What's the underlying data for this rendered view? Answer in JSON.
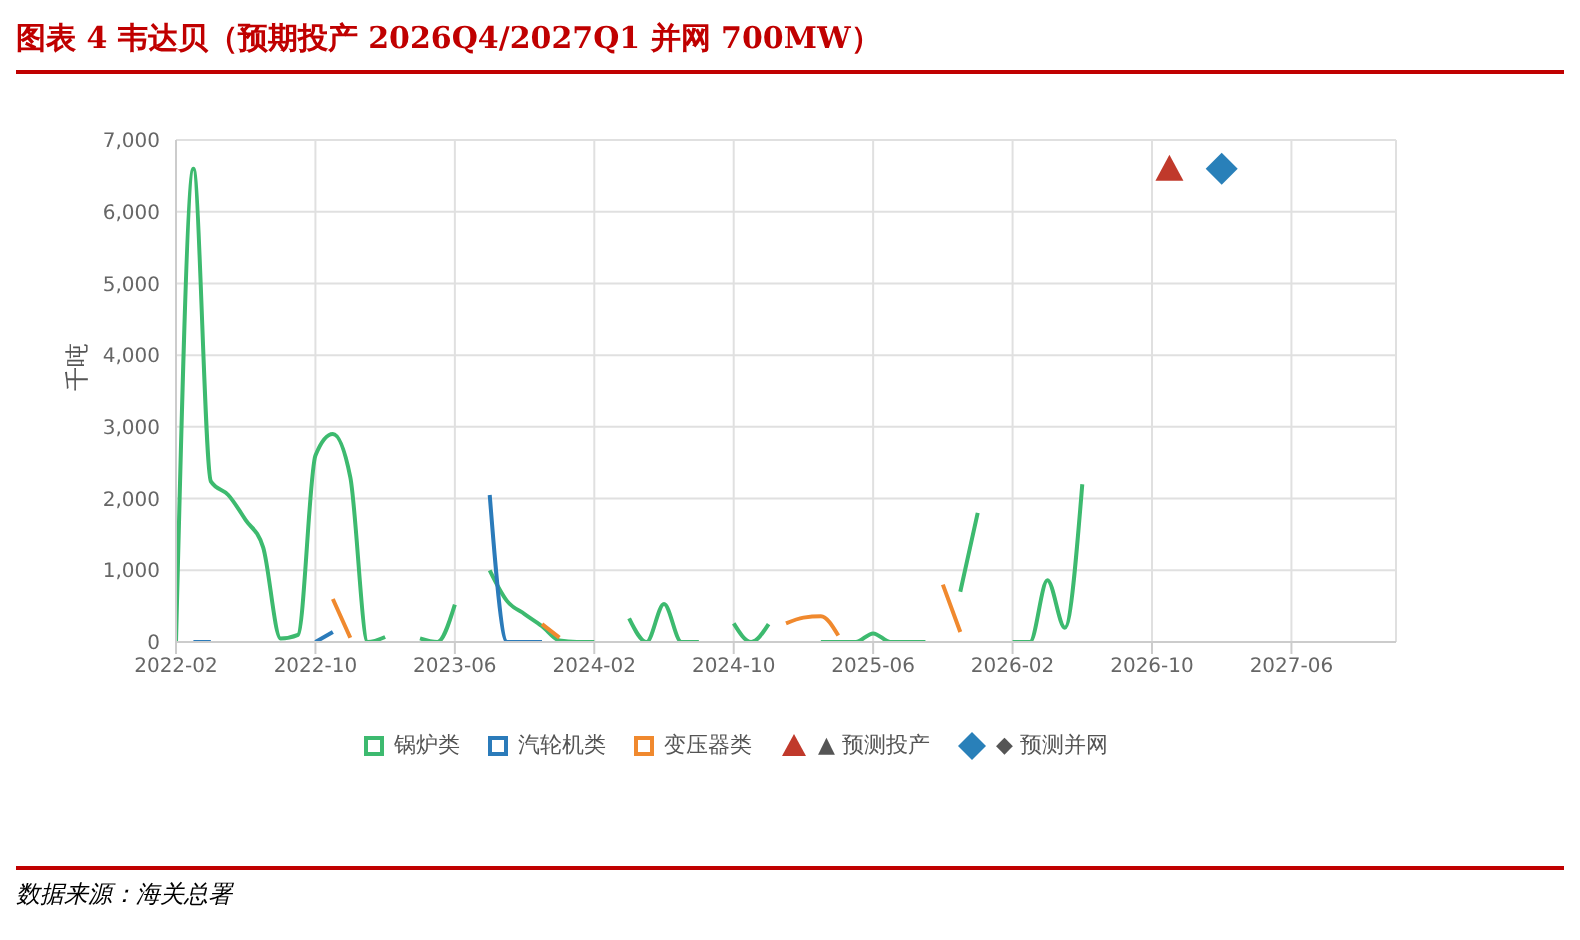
{
  "chart_data": {
    "type": "line",
    "title": "图表 4 韦达贝（预期投产 2026Q4/2027Q1 并网 700MW）",
    "ylabel": "千吨",
    "x": [
      "2022-02",
      "2022-03",
      "2022-04",
      "2022-05",
      "2022-06",
      "2022-07",
      "2022-08",
      "2022-09",
      "2022-10",
      "2022-11",
      "2022-12",
      "2023-01",
      "2023-02",
      "2023-03",
      "2023-04",
      "2023-05",
      "2023-06",
      "2023-07",
      "2023-08",
      "2023-09",
      "2023-10",
      "2023-11",
      "2023-12",
      "2024-01",
      "2024-02",
      "2024-03",
      "2024-04",
      "2024-05",
      "2024-06",
      "2024-07",
      "2024-08",
      "2024-09",
      "2024-10",
      "2024-11",
      "2024-12",
      "2025-01",
      "2025-02",
      "2025-03",
      "2025-04",
      "2025-05",
      "2025-06",
      "2025-07",
      "2025-08",
      "2025-09",
      "2025-10",
      "2025-11",
      "2025-12",
      "2026-01",
      "2026-02",
      "2026-03",
      "2026-04",
      "2026-05",
      "2026-06"
    ],
    "series": [
      {
        "name": "锅炉类",
        "color": "#3dba6f",
        "marker": "none",
        "values": [
          0,
          6600,
          2240,
          2050,
          1700,
          1320,
          50,
          100,
          2600,
          2900,
          2300,
          0,
          70,
          null,
          50,
          0,
          520,
          null,
          1000,
          570,
          390,
          220,
          20,
          0,
          0,
          null,
          330,
          0,
          530,
          0,
          0,
          null,
          260,
          0,
          250,
          null,
          null,
          0,
          0,
          0,
          120,
          0,
          0,
          0,
          null,
          700,
          1800,
          null,
          0,
          0,
          860,
          200,
          2200
        ]
      },
      {
        "name": "汽轮机类",
        "color": "#2b7bba",
        "marker": "none",
        "values": [
          null,
          0,
          0,
          null,
          null,
          null,
          null,
          null,
          0,
          140,
          null,
          null,
          null,
          null,
          null,
          null,
          null,
          null,
          2050,
          0,
          0,
          0,
          null,
          null,
          null,
          null,
          null,
          null,
          null,
          null,
          null,
          null,
          null,
          null,
          null,
          null,
          null,
          null,
          null,
          null,
          null,
          null,
          null,
          null,
          null,
          null,
          null,
          null,
          null,
          null,
          null,
          null,
          null
        ]
      },
      {
        "name": "变压器类",
        "color": "#f0892e",
        "marker": "none",
        "values": [
          null,
          null,
          null,
          null,
          null,
          null,
          null,
          null,
          null,
          600,
          60,
          null,
          null,
          null,
          null,
          null,
          null,
          null,
          null,
          null,
          null,
          250,
          60,
          null,
          null,
          null,
          null,
          null,
          null,
          null,
          null,
          null,
          null,
          null,
          null,
          260,
          340,
          360,
          90,
          null,
          null,
          null,
          null,
          null,
          800,
          140,
          null,
          null,
          null,
          null,
          null,
          null,
          null
        ]
      },
      {
        "name": "▲ 预测投产",
        "type": "scatter",
        "marker": "triangle",
        "color": "#c0392b",
        "x": [
          "2026-11"
        ],
        "values": [
          6600
        ]
      },
      {
        "name": "◆ 预测并网",
        "type": "scatter",
        "marker": "diamond",
        "color": "#2980b9",
        "x": [
          "2027-02"
        ],
        "values": [
          6600
        ]
      }
    ],
    "xlim": [
      "2022-02",
      "2027-12"
    ],
    "xticks": [
      "2022-02",
      "2022-10",
      "2023-06",
      "2024-02",
      "2024-10",
      "2025-06",
      "2026-02",
      "2026-10",
      "2027-06"
    ],
    "ylim": [
      0,
      7000
    ],
    "yticks": [
      0,
      {
        "value": 1000,
        "label": "1,000"
      },
      {
        "value": 2000,
        "label": "2,000"
      },
      {
        "value": 3000,
        "label": "3,000"
      },
      {
        "value": 4000,
        "label": "4,000"
      },
      {
        "value": 5000,
        "label": "5,000"
      },
      {
        "value": 6000,
        "label": "6,000"
      },
      {
        "value": 7000,
        "label": "7,000"
      }
    ],
    "grid": true,
    "legend": "bottom",
    "annotations": [
      "数据来源：海关总署"
    ]
  }
}
